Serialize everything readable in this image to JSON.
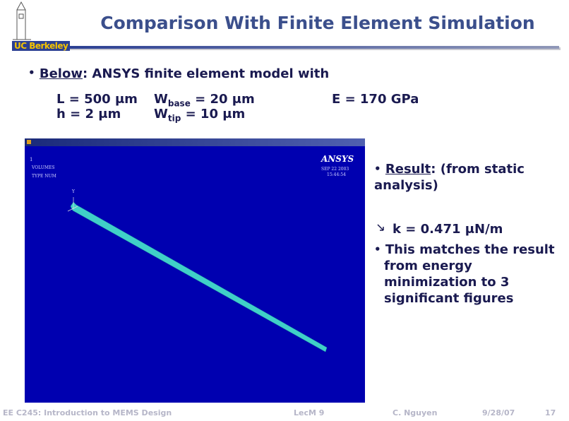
{
  "header": {
    "title": "Comparison With Finite Element Simulation",
    "logo": "UC Berkeley"
  },
  "intro": {
    "lead": "Below",
    "text": ": ANSYS finite element model with"
  },
  "params": [
    {
      "label": "L",
      "value": " = 500 μm"
    },
    {
      "label": "W",
      "sub": "base",
      "value": " = 20 μm"
    },
    {
      "label": "E",
      "value": " = 170 GPa"
    },
    {
      "label": "h",
      "value": " = 2 μm"
    },
    {
      "label": "W",
      "sub": "tip",
      "value": " = 10 μm"
    }
  ],
  "screenshot": {
    "brand": "ANSYS",
    "date": "SEP 22 2003",
    "time": "15:44:54",
    "index": "1",
    "line1": "VOLUMES",
    "line2": "TYPE NUM",
    "axis": "Y"
  },
  "result": {
    "lead": "Result",
    "text": ": (from static analysis)",
    "value": "k = 0.471 μN/m"
  },
  "note": "This matches the result from energy minimization to 3 significant figures",
  "footer": {
    "course": "EE C245: Introduction to MEMS Design",
    "lecture": "LecM 9",
    "author": "C. Nguyen",
    "date": "9/28/07",
    "page": "17"
  }
}
